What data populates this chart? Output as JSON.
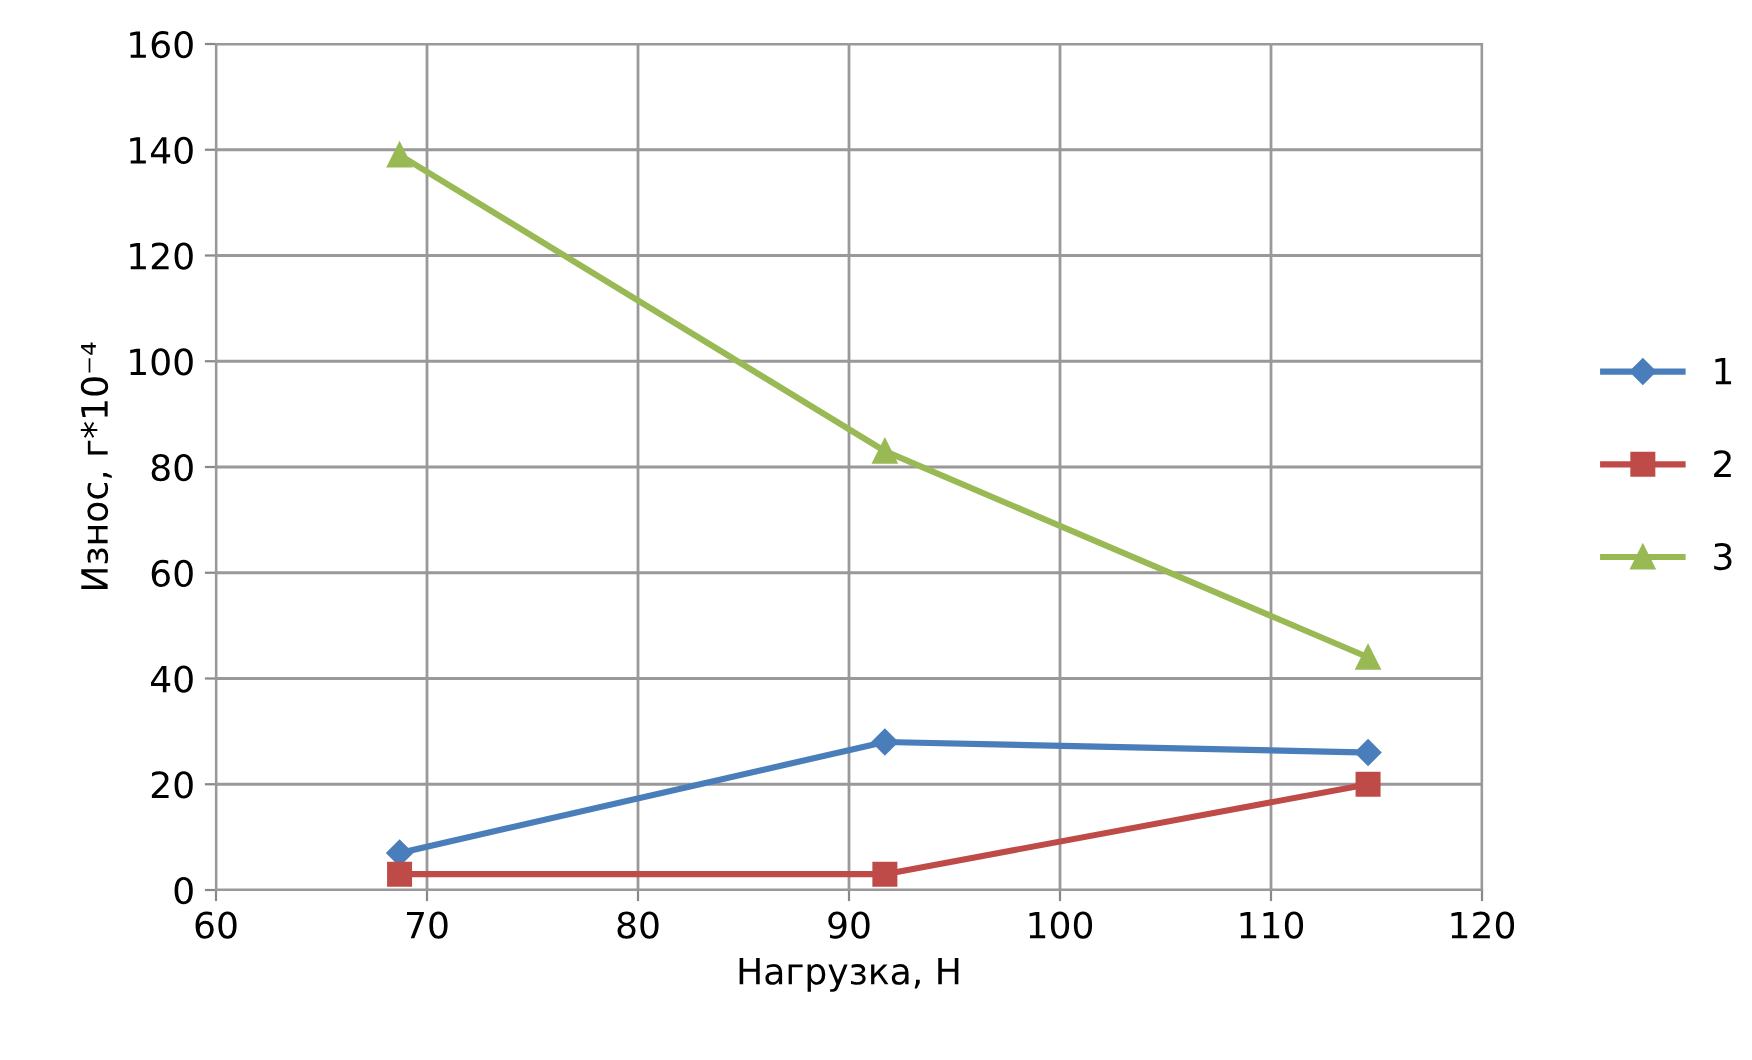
{
  "chart_data": {
    "type": "line",
    "xlabel": "Нагрузка, Н",
    "ylabel": "Износ, г*10⁻⁴",
    "xlim": [
      60,
      120
    ],
    "xticks": [
      60,
      70,
      80,
      90,
      100,
      110,
      120
    ],
    "ylim": [
      0,
      160
    ],
    "yticks": [
      0,
      20,
      40,
      60,
      80,
      100,
      120,
      140,
      160
    ],
    "grid": true,
    "legend": "right",
    "series": [
      {
        "name": "1",
        "color": "#4a7ebb",
        "marker": "diamond",
        "x": [
          68.7,
          91.7,
          114.6
        ],
        "values": [
          7,
          28,
          26
        ]
      },
      {
        "name": "2",
        "color": "#be4b48",
        "marker": "square",
        "x": [
          68.7,
          91.7,
          114.6
        ],
        "values": [
          3,
          3,
          20
        ]
      },
      {
        "name": "3",
        "color": "#98b954",
        "marker": "triangle",
        "x": [
          68.7,
          91.7,
          114.6
        ],
        "values": [
          139,
          83,
          44
        ]
      }
    ]
  }
}
